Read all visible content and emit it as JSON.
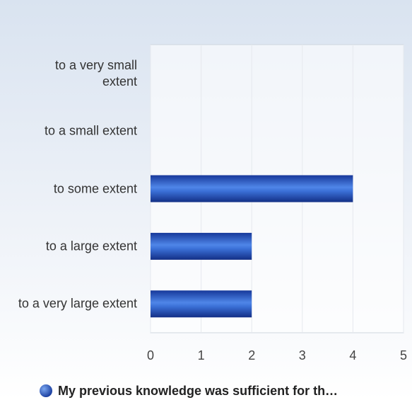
{
  "chart_data": {
    "type": "bar",
    "orientation": "horizontal",
    "categories": [
      "to a very small extent",
      "to a small extent",
      "to some extent",
      "to a large extent",
      "to a very large extent"
    ],
    "series": [
      {
        "name": "My previous knowledge was sufficient for th…",
        "color": "#2458c4",
        "values": [
          0,
          0,
          4,
          2,
          2
        ]
      }
    ],
    "xlim": [
      0,
      5
    ],
    "xticks": [
      0,
      1,
      2,
      3,
      4,
      5
    ],
    "grid": true,
    "legend": "bottom"
  }
}
